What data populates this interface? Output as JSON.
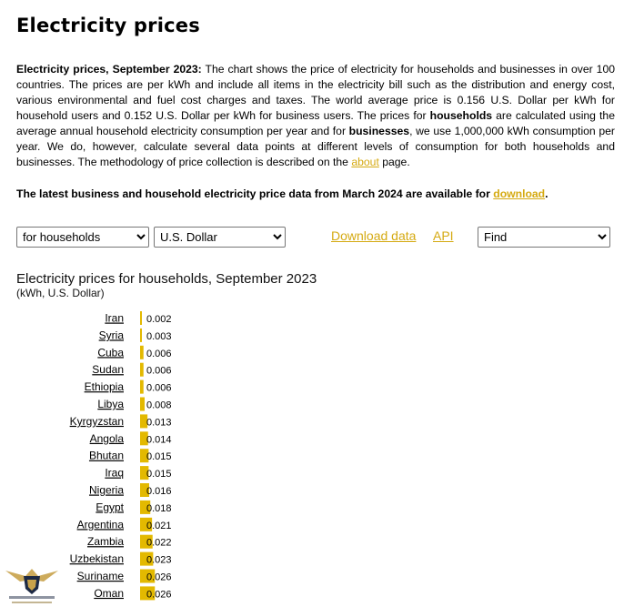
{
  "page": {
    "title": "Electricity prices",
    "intro": {
      "lead": "Electricity prices, September 2023:",
      "text1": " The chart shows the price of electricity for households and businesses in over 100 countries. The prices are per kWh and include all items in the electricity bill such as the distribution and energy cost, various environmental and fuel cost charges and taxes. The world average price is 0.156 U.S. Dollar per kWh for household users and 0.152 U.S. Dollar per kWh for business users. The prices for ",
      "households": "households",
      "text2": " are calculated using the average annual household electricity consumption per year and for ",
      "businesses": "businesses",
      "text3": ", we use 1,000,000 kWh consumption per year. We do, however, calculate several data points at different levels of consumption for both households and businesses. The methodology of price collection is described on the ",
      "about_link": "about",
      "text4": " page."
    },
    "latest": {
      "text": "The latest business and household electricity price data from March 2024 are available for ",
      "link": "download",
      "end": "."
    }
  },
  "controls": {
    "consumer_select": "for households",
    "currency_select": "U.S. Dollar",
    "download_link": "Download data",
    "api_link": "API",
    "find_select": "Find"
  },
  "colors": {
    "bar": "#e3b900",
    "link": "#d5aa12"
  },
  "chart_data": {
    "type": "bar",
    "orientation": "horizontal",
    "title": "Electricity prices for households, September 2023",
    "subtitle": "(kWh, U.S. Dollar)",
    "categories": [
      "Iran",
      "Syria",
      "Cuba",
      "Sudan",
      "Ethiopia",
      "Libya",
      "Kyrgyzstan",
      "Angola",
      "Bhutan",
      "Iraq",
      "Nigeria",
      "Egypt",
      "Argentina",
      "Zambia",
      "Uzbekistan",
      "Suriname",
      "Oman"
    ],
    "values": [
      0.002,
      0.003,
      0.006,
      0.006,
      0.006,
      0.008,
      0.013,
      0.014,
      0.015,
      0.015,
      0.016,
      0.018,
      0.021,
      0.022,
      0.023,
      0.026,
      0.026
    ],
    "value_labels": [
      "0.002",
      "0.003",
      "0.006",
      "0.006",
      "0.006",
      "0.008",
      "0.013",
      "0.014",
      "0.015",
      "0.015",
      "0.016",
      "0.018",
      "0.021",
      "0.022",
      "0.023",
      "0.026",
      "0.026"
    ],
    "xlim": [
      0,
      0.8
    ],
    "grid": false,
    "legend": "none"
  }
}
